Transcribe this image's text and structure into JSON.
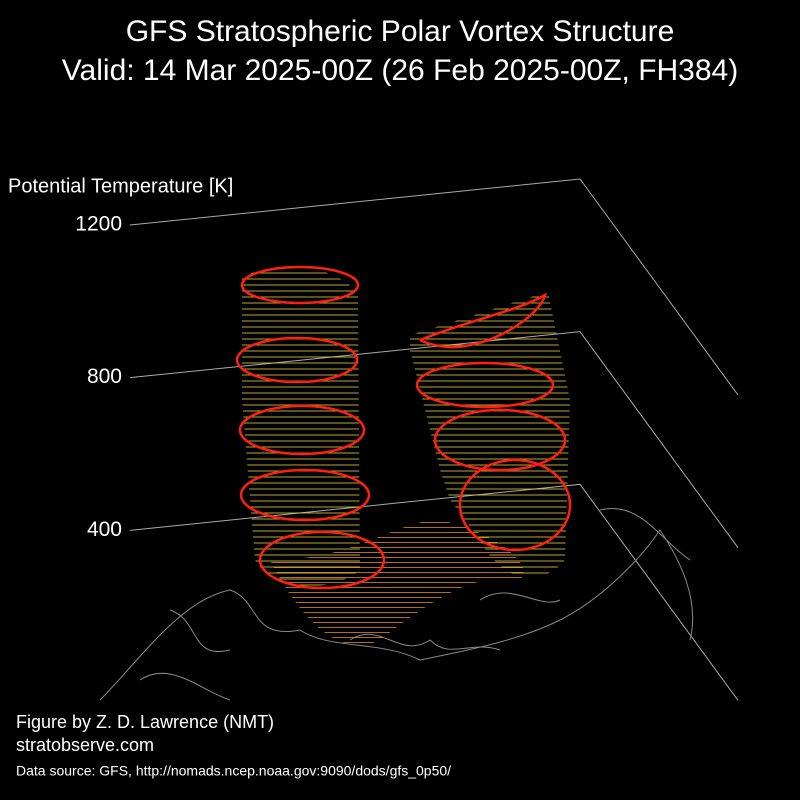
{
  "chart_data": {
    "type": "3d-surface",
    "title": "GFS Stratospheric Polar Vortex Structure",
    "subtitle": "Valid: 14 Mar 2025-00Z  (26 Feb 2025-00Z, FH384)",
    "zlabel": "Potential Temperature [K]",
    "zlim": [
      0,
      1200
    ],
    "zticks": [
      400,
      800,
      1200
    ],
    "grid": true,
    "credit": "Figure by Z. D. Lawrence (NMT)",
    "website": "stratobserve.com",
    "source": "Data source: GFS, http://nomads.ncep.noaa.gov:9090/dods/gfs_0p50/"
  }
}
